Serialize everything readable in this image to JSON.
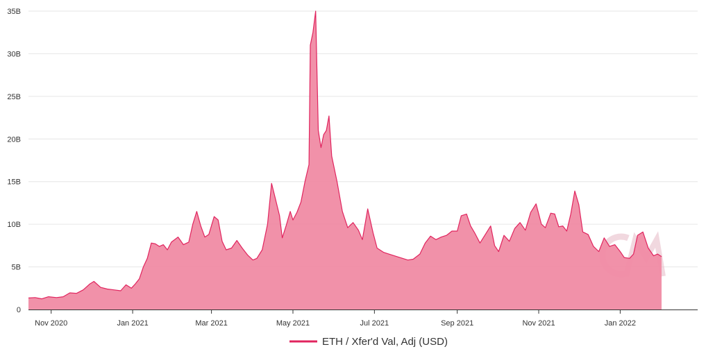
{
  "chart_data": {
    "type": "area",
    "title": "",
    "xlabel": "",
    "ylabel": "",
    "ylim": [
      0,
      35000000000
    ],
    "y_ticks": [
      {
        "value": 0,
        "label": "0"
      },
      {
        "value": 5000000000,
        "label": "5B"
      },
      {
        "value": 10000000000,
        "label": "10B"
      },
      {
        "value": 15000000000,
        "label": "15B"
      },
      {
        "value": 20000000000,
        "label": "20B"
      },
      {
        "value": 25000000000,
        "label": "25B"
      },
      {
        "value": 30000000000,
        "label": "30B"
      },
      {
        "value": 35000000000,
        "label": "35B"
      }
    ],
    "xlim": [
      "2020-10-15",
      "2022-02-28"
    ],
    "x_ticks": [
      {
        "value": "2020-11-01",
        "label": "Nov 2020"
      },
      {
        "value": "2021-01-01",
        "label": "Jan 2021"
      },
      {
        "value": "2021-03-01",
        "label": "Mar 2021"
      },
      {
        "value": "2021-05-01",
        "label": "May 2021"
      },
      {
        "value": "2021-07-01",
        "label": "Jul 2021"
      },
      {
        "value": "2021-09-01",
        "label": "Sep 2021"
      },
      {
        "value": "2021-11-01",
        "label": "Nov 2021"
      },
      {
        "value": "2022-01-01",
        "label": "Jan 2022"
      }
    ],
    "grid": "horizontal",
    "legend_position": "bottom-center",
    "series": [
      {
        "name": "ETH / Xfer'd Val, Adj (USD)",
        "color": "#e0245e",
        "fill_color": "#f08ba4",
        "points": [
          [
            "2020-10-15",
            1350000000.0
          ],
          [
            "2020-10-20",
            1400000000.0
          ],
          [
            "2020-10-25",
            1250000000.0
          ],
          [
            "2020-10-30",
            1500000000.0
          ],
          [
            "2020-11-05",
            1400000000.0
          ],
          [
            "2020-11-10",
            1500000000.0
          ],
          [
            "2020-11-15",
            1950000000.0
          ],
          [
            "2020-11-20",
            1900000000.0
          ],
          [
            "2020-11-25",
            2300000000.0
          ],
          [
            "2020-11-30",
            3000000000.0
          ],
          [
            "2020-12-03",
            3300000000.0
          ],
          [
            "2020-12-08",
            2600000000.0
          ],
          [
            "2020-12-13",
            2400000000.0
          ],
          [
            "2020-12-18",
            2300000000.0
          ],
          [
            "2020-12-23",
            2200000000.0
          ],
          [
            "2020-12-27",
            2900000000.0
          ],
          [
            "2020-12-31",
            2500000000.0
          ],
          [
            "2021-01-03",
            3000000000.0
          ],
          [
            "2021-01-06",
            3600000000.0
          ],
          [
            "2021-01-09",
            5000000000.0
          ],
          [
            "2021-01-12",
            6000000000.0
          ],
          [
            "2021-01-15",
            7800000000.0
          ],
          [
            "2021-01-18",
            7700000000.0
          ],
          [
            "2021-01-21",
            7400000000.0
          ],
          [
            "2021-01-24",
            7600000000.0
          ],
          [
            "2021-01-27",
            7000000000.0
          ],
          [
            "2021-01-30",
            7900000000.0
          ],
          [
            "2021-02-04",
            8500000000.0
          ],
          [
            "2021-02-08",
            7600000000.0
          ],
          [
            "2021-02-12",
            7900000000.0
          ],
          [
            "2021-02-15",
            10000000000.0
          ],
          [
            "2021-02-18",
            11500000000.0
          ],
          [
            "2021-02-21",
            9800000000.0
          ],
          [
            "2021-02-24",
            8500000000.0
          ],
          [
            "2021-02-27",
            8800000000.0
          ],
          [
            "2021-03-03",
            10900000000.0
          ],
          [
            "2021-03-06",
            10500000000.0
          ],
          [
            "2021-03-09",
            8000000000.0
          ],
          [
            "2021-03-12",
            7000000000.0
          ],
          [
            "2021-03-16",
            7200000000.0
          ],
          [
            "2021-03-20",
            8100000000.0
          ],
          [
            "2021-03-24",
            7200000000.0
          ],
          [
            "2021-03-28",
            6400000000.0
          ],
          [
            "2021-04-01",
            5800000000.0
          ],
          [
            "2021-04-04",
            6000000000.0
          ],
          [
            "2021-04-08",
            7000000000.0
          ],
          [
            "2021-04-12",
            10000000000.0
          ],
          [
            "2021-04-15",
            14800000000.0
          ],
          [
            "2021-04-18",
            12900000000.0
          ],
          [
            "2021-04-21",
            11000000000.0
          ],
          [
            "2021-04-23",
            8400000000.0
          ],
          [
            "2021-04-26",
            9900000000.0
          ],
          [
            "2021-04-29",
            11500000000.0
          ],
          [
            "2021-05-01",
            10500000000.0
          ],
          [
            "2021-05-04",
            11400000000.0
          ],
          [
            "2021-05-07",
            12600000000.0
          ],
          [
            "2021-05-10",
            15000000000.0
          ],
          [
            "2021-05-13",
            17000000000.0
          ],
          [
            "2021-05-14",
            31000000000.0
          ],
          [
            "2021-05-16",
            32500000000.0
          ],
          [
            "2021-05-18",
            35000000000.0
          ],
          [
            "2021-05-20",
            21000000000.0
          ],
          [
            "2021-05-22",
            19000000000.0
          ],
          [
            "2021-05-24",
            20500000000.0
          ],
          [
            "2021-05-26",
            21000000000.0
          ],
          [
            "2021-05-28",
            22700000000.0
          ],
          [
            "2021-05-30",
            18000000000.0
          ],
          [
            "2021-06-03",
            15000000000.0
          ],
          [
            "2021-06-07",
            11500000000.0
          ],
          [
            "2021-06-11",
            9600000000.0
          ],
          [
            "2021-06-15",
            10200000000.0
          ],
          [
            "2021-06-19",
            9300000000.0
          ],
          [
            "2021-06-22",
            8200000000.0
          ],
          [
            "2021-06-26",
            11800000000.0
          ],
          [
            "2021-06-30",
            9000000000.0
          ],
          [
            "2021-07-03",
            7200000000.0
          ],
          [
            "2021-07-08",
            6700000000.0
          ],
          [
            "2021-07-14",
            6400000000.0
          ],
          [
            "2021-07-20",
            6100000000.0
          ],
          [
            "2021-07-26",
            5800000000.0
          ],
          [
            "2021-07-30",
            5900000000.0
          ],
          [
            "2021-08-04",
            6500000000.0
          ],
          [
            "2021-08-08",
            7800000000.0
          ],
          [
            "2021-08-12",
            8600000000.0
          ],
          [
            "2021-08-16",
            8200000000.0
          ],
          [
            "2021-08-20",
            8500000000.0
          ],
          [
            "2021-08-24",
            8700000000.0
          ],
          [
            "2021-08-28",
            9200000000.0
          ],
          [
            "2021-09-01",
            9200000000.0
          ],
          [
            "2021-09-04",
            11000000000.0
          ],
          [
            "2021-09-08",
            11200000000.0
          ],
          [
            "2021-09-11",
            9800000000.0
          ],
          [
            "2021-09-14",
            9000000000.0
          ],
          [
            "2021-09-18",
            7800000000.0
          ],
          [
            "2021-09-22",
            8800000000.0
          ],
          [
            "2021-09-26",
            9800000000.0
          ],
          [
            "2021-09-29",
            7500000000.0
          ],
          [
            "2021-10-02",
            6800000000.0
          ],
          [
            "2021-10-06",
            8700000000.0
          ],
          [
            "2021-10-10",
            8000000000.0
          ],
          [
            "2021-10-14",
            9500000000.0
          ],
          [
            "2021-10-18",
            10200000000.0
          ],
          [
            "2021-10-22",
            9300000000.0
          ],
          [
            "2021-10-26",
            11400000000.0
          ],
          [
            "2021-10-30",
            12400000000.0
          ],
          [
            "2021-11-03",
            10000000000.0
          ],
          [
            "2021-11-06",
            9600000000.0
          ],
          [
            "2021-11-10",
            11300000000.0
          ],
          [
            "2021-11-13",
            11200000000.0
          ],
          [
            "2021-11-16",
            9700000000.0
          ],
          [
            "2021-11-19",
            9800000000.0
          ],
          [
            "2021-11-22",
            9200000000.0
          ],
          [
            "2021-11-25",
            11200000000.0
          ],
          [
            "2021-11-28",
            13900000000.0
          ],
          [
            "2021-12-01",
            12300000000.0
          ],
          [
            "2021-12-04",
            9100000000.0
          ],
          [
            "2021-12-08",
            8800000000.0
          ],
          [
            "2021-12-12",
            7400000000.0
          ],
          [
            "2021-12-16",
            6800000000.0
          ],
          [
            "2021-12-20",
            8400000000.0
          ],
          [
            "2021-12-24",
            7400000000.0
          ],
          [
            "2021-12-28",
            7600000000.0
          ],
          [
            "2022-01-01",
            6800000000.0
          ],
          [
            "2022-01-04",
            6100000000.0
          ],
          [
            "2022-01-08",
            6000000000.0
          ],
          [
            "2022-01-11",
            6500000000.0
          ],
          [
            "2022-01-14",
            8700000000.0
          ],
          [
            "2022-01-18",
            9100000000.0
          ],
          [
            "2022-01-22",
            7200000000.0
          ],
          [
            "2022-01-26",
            6300000000.0
          ],
          [
            "2022-01-29",
            6500000000.0
          ],
          [
            "2022-02-01",
            6200000000.0
          ]
        ]
      }
    ]
  },
  "watermark": {
    "icon": "cm-logo-icon",
    "color": "#e7b9c6"
  },
  "colors": {
    "grid": "#e6e6e6",
    "axis": "#333333",
    "label": "#333333"
  }
}
